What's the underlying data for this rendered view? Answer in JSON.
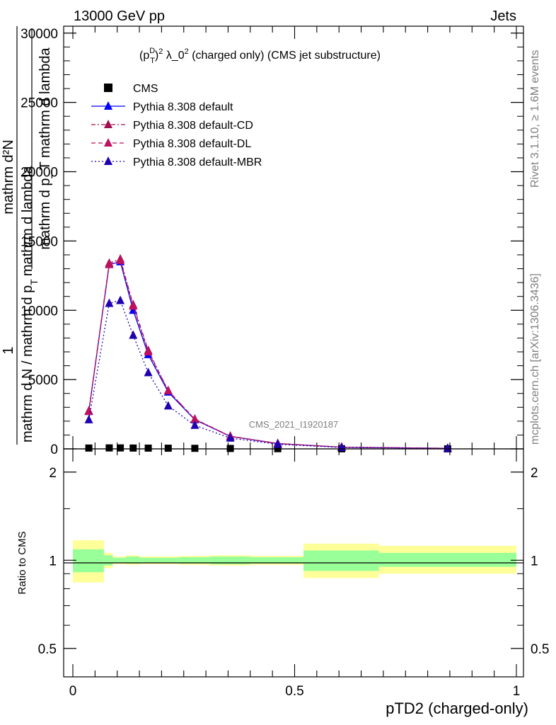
{
  "header": {
    "left": "13000 GeV pp",
    "right": "Jets"
  },
  "side_labels": {
    "rivet": "Rivet 3.1.10, ≥ 1.6M events",
    "mcplots": "mcplots.cern.ch [arXiv:1306.3436]"
  },
  "chart_data": [
    {
      "type": "line",
      "title_parts": {
        "p": "(p",
        "sup_d": "D",
        "sub_t": "T",
        "close": ")",
        "sup_2": "2",
        "lambda": " λ_0",
        "sup_2b": "2",
        "rest": " (charged only) (CMS jet substructure)"
      },
      "watermark": "CMS_2021_I1920187",
      "ylabel_lines": [
        "1",
        "mathrm d N / mathrm d p_T mathrm d lambda",
        "mathrm d²N",
        "mathrm d p_T mathrm d lambda"
      ],
      "ylabel_frac_top": "mathrm d²N",
      "ylabel_frac_bottom": "mathrm d p_T mathrm d lambda",
      "ylabel_one": "1",
      "ylabel_main": "mathrm d N / mathrm d p",
      "ylabel_sub": "T",
      "ylabel_tail": "mathrm d lambda",
      "xlim": [
        0,
        1
      ],
      "ylim": [
        0,
        30500
      ],
      "yticks": [
        0,
        5000,
        10000,
        15000,
        20000,
        25000,
        30000
      ],
      "ytick_labels": [
        "0",
        "5000",
        "10000",
        "15000",
        "20000",
        "25000",
        "30000"
      ],
      "legend": {
        "position": "top-left",
        "entries": [
          "CMS",
          "Pythia 8.308 default",
          "Pythia 8.308 default-CD",
          "Pythia 8.308 default-DL",
          "Pythia 8.308 default-MBR"
        ]
      },
      "x": [
        0.036,
        0.082,
        0.107,
        0.136,
        0.17,
        0.215,
        0.275,
        0.355,
        0.462,
        0.606,
        0.845
      ],
      "series": [
        {
          "name": "CMS",
          "color": "#000000",
          "marker": "square",
          "values": [
            60,
            70,
            70,
            60,
            55,
            50,
            40,
            30,
            15,
            8,
            3
          ]
        },
        {
          "name": "Pythia 8.308 default",
          "color": "#0000ff",
          "style": "solid",
          "marker": "triangle",
          "values": [
            2700,
            13300,
            13500,
            10000,
            6800,
            4100,
            2100,
            900,
            380,
            120,
            40
          ]
        },
        {
          "name": "Pythia 8.308 default-CD",
          "color": "#a01050",
          "style": "dashdot",
          "marker": "triangle",
          "values": [
            2750,
            13400,
            13700,
            10400,
            7100,
            4200,
            2150,
            920,
            390,
            125,
            42
          ]
        },
        {
          "name": "Pythia 8.308 default-DL",
          "color": "#c01060",
          "style": "dashed",
          "marker": "triangle",
          "values": [
            2700,
            13300,
            13600,
            10300,
            7000,
            4200,
            2130,
            910,
            385,
            122,
            41
          ]
        },
        {
          "name": "Pythia 8.308 default-MBR",
          "color": "#2000b0",
          "style": "dotted",
          "marker": "triangle",
          "values": [
            2100,
            10500,
            10700,
            8200,
            5500,
            3100,
            1700,
            780,
            330,
            105,
            35
          ]
        }
      ]
    },
    {
      "type": "area",
      "ylabel": "Ratio to CMS",
      "xlabel": "pTD2 (charged-only)",
      "xticks": [
        0,
        0.5,
        1
      ],
      "xtick_labels": [
        "0",
        "0.5",
        "1"
      ],
      "ylog": true,
      "ylim": [
        0.4,
        2.4
      ],
      "yticks": [
        0.5,
        1,
        2
      ],
      "ytick_labels": [
        "0.5",
        "1",
        "2"
      ],
      "bin_edges": [
        0,
        0.07,
        0.09,
        0.12,
        0.15,
        0.19,
        0.24,
        0.31,
        0.4,
        0.52,
        0.69,
        1.0
      ],
      "band_inner": [
        [
          0.91,
          1.09
        ],
        [
          0.96,
          1.04
        ],
        [
          0.98,
          1.02
        ],
        [
          0.975,
          1.03
        ],
        [
          0.98,
          1.02
        ],
        [
          0.98,
          1.02
        ],
        [
          0.975,
          1.025
        ],
        [
          0.97,
          1.03
        ],
        [
          0.975,
          1.025
        ],
        [
          0.92,
          1.08
        ],
        [
          0.95,
          1.06
        ]
      ],
      "band_outer": [
        [
          0.84,
          1.17
        ],
        [
          0.94,
          1.06
        ],
        [
          0.97,
          1.03
        ],
        [
          0.965,
          1.04
        ],
        [
          0.97,
          1.03
        ],
        [
          0.97,
          1.03
        ],
        [
          0.965,
          1.035
        ],
        [
          0.96,
          1.04
        ],
        [
          0.965,
          1.035
        ],
        [
          0.87,
          1.14
        ],
        [
          0.9,
          1.12
        ]
      ],
      "colors": {
        "inner": "#99ff99",
        "outer": "#ffff99"
      }
    }
  ]
}
